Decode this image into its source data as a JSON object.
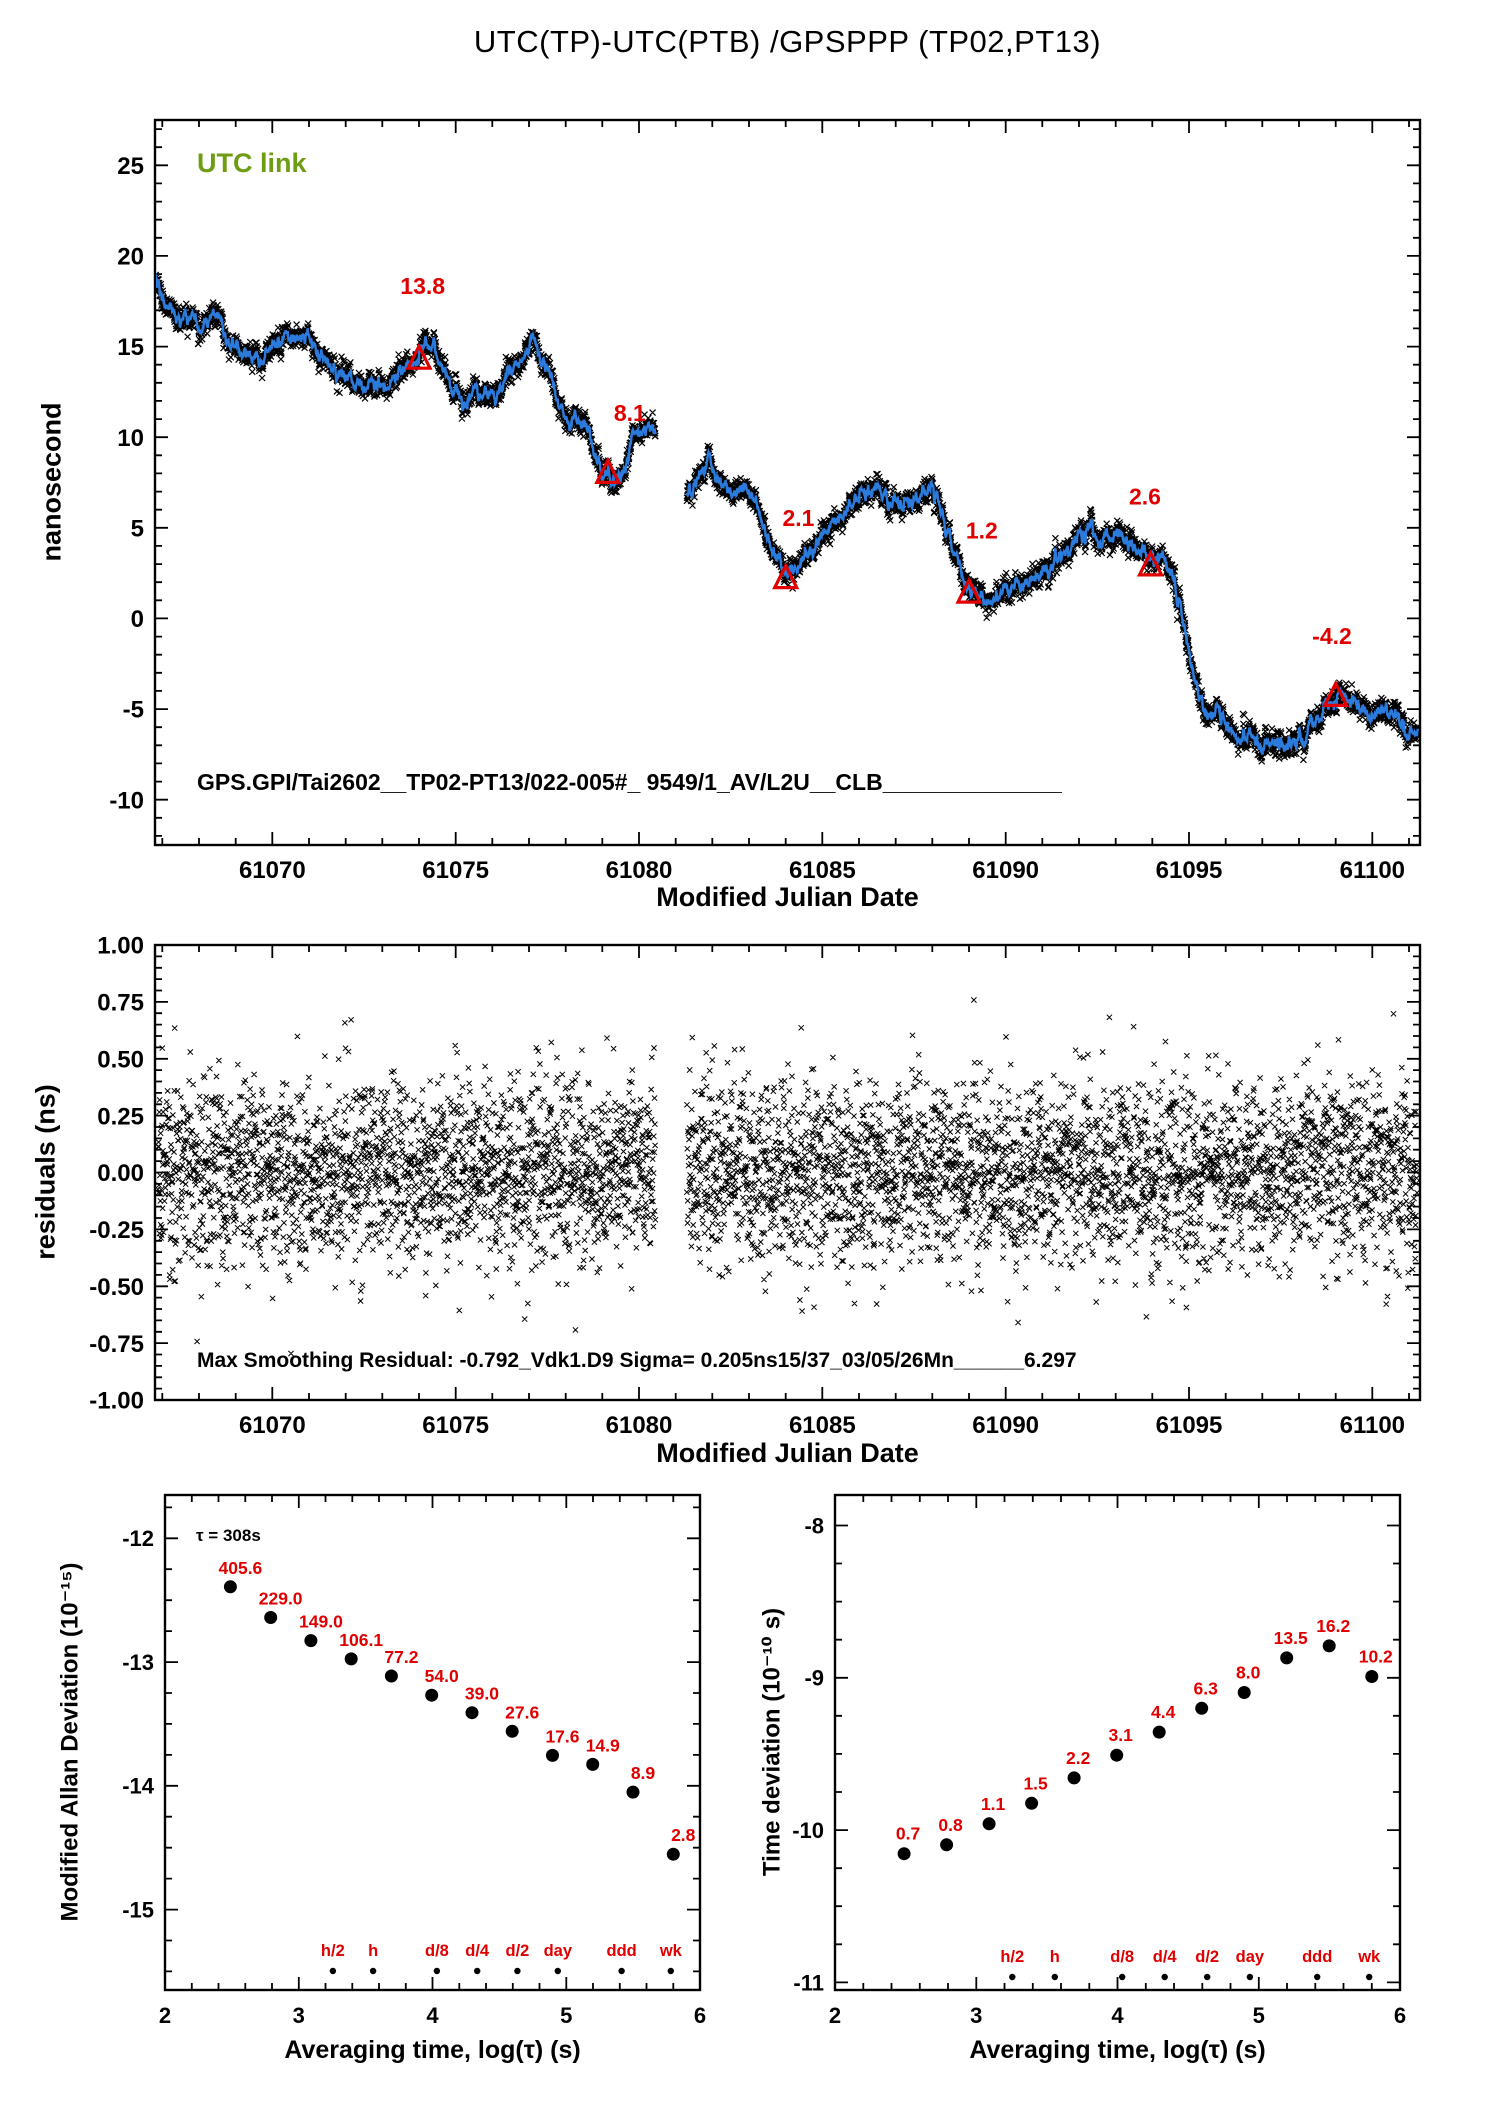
{
  "page": {
    "title": "UTC(TP)-UTC(PTB)  /GPSPPP  (TP02,PT13)"
  },
  "chart_data": [
    {
      "type": "line",
      "name": "utc-time-link",
      "series_label": "UTC link",
      "series_label_color": "#6e9c13",
      "ylabel": "nanosecond",
      "xlabel": "Modified Julian Date",
      "annotation": "GPS.GPI/Tai2602__TP02-PT13/022-005#_  9549/1_AV/L2U__CLB______________",
      "xlim": [
        61066.8,
        61101.3
      ],
      "ylim": [
        -12.5,
        27.5
      ],
      "x_major_ticks": [
        61070,
        61075,
        61080,
        61085,
        61090,
        61095,
        61100
      ],
      "y_major_ticks": [
        -10,
        -5,
        0,
        5,
        10,
        15,
        20,
        25
      ],
      "x_minor_step": 1,
      "y_minor_step": 1,
      "data_gap_mjd": [
        61080.45,
        61081.3
      ],
      "line_color": "#2b7bdc",
      "marker_color": "#000000",
      "accent_color": "#e00000",
      "trend_anchors": [
        [
          61066.8,
          18.8
        ],
        [
          61067.2,
          17.2
        ],
        [
          61067.5,
          16.3
        ],
        [
          61067.8,
          16.9
        ],
        [
          61068.1,
          16.1
        ],
        [
          61068.4,
          17.0
        ],
        [
          61068.8,
          15.3
        ],
        [
          61069.2,
          14.6
        ],
        [
          61069.6,
          14.4
        ],
        [
          61070.0,
          14.8
        ],
        [
          61070.4,
          15.3
        ],
        [
          61070.8,
          15.9
        ],
        [
          61071.1,
          15.2
        ],
        [
          61071.4,
          14.2
        ],
        [
          61071.8,
          13.3
        ],
        [
          61072.1,
          13.4
        ],
        [
          61072.4,
          12.9
        ],
        [
          61072.8,
          12.9
        ],
        [
          61073.2,
          13.1
        ],
        [
          61073.6,
          13.9
        ],
        [
          61073.9,
          14.3
        ],
        [
          61074.1,
          14.9
        ],
        [
          61074.35,
          15.3
        ],
        [
          61074.6,
          13.8
        ],
        [
          61074.9,
          12.5
        ],
        [
          61075.2,
          12.0
        ],
        [
          61075.5,
          12.6
        ],
        [
          61075.8,
          12.4
        ],
        [
          61076.1,
          12.6
        ],
        [
          61076.5,
          13.3
        ],
        [
          61076.9,
          14.6
        ],
        [
          61077.1,
          15.8
        ],
        [
          61077.35,
          14.2
        ],
        [
          61077.7,
          12.6
        ],
        [
          61078.0,
          11.2
        ],
        [
          61078.3,
          10.7
        ],
        [
          61078.7,
          9.8
        ],
        [
          61079.0,
          8.2
        ],
        [
          61079.25,
          7.1
        ],
        [
          61079.5,
          7.8
        ],
        [
          61079.8,
          9.4
        ],
        [
          61080.1,
          10.6
        ],
        [
          61080.45,
          9.9
        ],
        [
          61081.3,
          6.9
        ],
        [
          61081.6,
          7.6
        ],
        [
          61081.9,
          8.7
        ],
        [
          61082.15,
          7.3
        ],
        [
          61082.5,
          6.9
        ],
        [
          61082.8,
          7.3
        ],
        [
          61083.1,
          6.8
        ],
        [
          61083.4,
          4.9
        ],
        [
          61083.75,
          3.3
        ],
        [
          61084.05,
          2.2
        ],
        [
          61084.35,
          2.7
        ],
        [
          61084.7,
          3.6
        ],
        [
          61085.0,
          4.4
        ],
        [
          61085.4,
          5.4
        ],
        [
          61085.8,
          6.3
        ],
        [
          61086.1,
          6.9
        ],
        [
          61086.5,
          7.0
        ],
        [
          61086.9,
          6.4
        ],
        [
          61087.3,
          6.3
        ],
        [
          61087.7,
          6.6
        ],
        [
          61088.0,
          7.1
        ],
        [
          61088.3,
          5.6
        ],
        [
          61088.65,
          3.1
        ],
        [
          61089.0,
          1.6
        ],
        [
          61089.3,
          1.1
        ],
        [
          61089.6,
          0.7
        ],
        [
          61089.9,
          1.4
        ],
        [
          61090.3,
          1.9
        ],
        [
          61090.7,
          2.1
        ],
        [
          61091.1,
          2.4
        ],
        [
          61091.5,
          3.4
        ],
        [
          61091.9,
          4.4
        ],
        [
          61092.3,
          4.6
        ],
        [
          61092.7,
          4.3
        ],
        [
          61093.1,
          4.6
        ],
        [
          61093.5,
          4.2
        ],
        [
          61093.8,
          3.4
        ],
        [
          61094.05,
          3.0
        ],
        [
          61094.3,
          3.6
        ],
        [
          61094.55,
          2.6
        ],
        [
          61094.75,
          0.8
        ],
        [
          61095.0,
          -1.8
        ],
        [
          61095.25,
          -4.3
        ],
        [
          61095.5,
          -5.4
        ],
        [
          61095.8,
          -5.1
        ],
        [
          61096.1,
          -5.9
        ],
        [
          61096.4,
          -6.4
        ],
        [
          61096.7,
          -6.2
        ],
        [
          61097.0,
          -7.4
        ],
        [
          61097.3,
          -6.6
        ],
        [
          61097.6,
          -7.1
        ],
        [
          61097.9,
          -6.7
        ],
        [
          61098.2,
          -6.2
        ],
        [
          61098.6,
          -5.4
        ],
        [
          61099.0,
          -4.4
        ],
        [
          61099.3,
          -4.1
        ],
        [
          61099.6,
          -5.0
        ],
        [
          61099.9,
          -5.5
        ],
        [
          61100.2,
          -4.9
        ],
        [
          61100.5,
          -5.3
        ],
        [
          61100.8,
          -5.9
        ],
        [
          61101.1,
          -6.3
        ],
        [
          61101.25,
          -6.1
        ]
      ],
      "calibration_triangles": [
        {
          "x": 61074.0,
          "y": 14.3,
          "label": "13.8",
          "label_dx": 0.1,
          "label_dy": 3.6
        },
        {
          "x": 61079.15,
          "y": 8.0,
          "label": "8.1",
          "label_dx": 0.6,
          "label_dy": 2.9
        },
        {
          "x": 61084.0,
          "y": 2.2,
          "label": "2.1",
          "label_dx": 0.35,
          "label_dy": 2.9
        },
        {
          "x": 61089.0,
          "y": 1.4,
          "label": "1.2",
          "label_dx": 0.35,
          "label_dy": 3.0
        },
        {
          "x": 61093.95,
          "y": 2.9,
          "label": "2.6",
          "label_dx": -0.15,
          "label_dy": 3.4
        },
        {
          "x": 61099.0,
          "y": -4.3,
          "label": "-4.2",
          "label_dx": -0.1,
          "label_dy": 2.9
        }
      ]
    },
    {
      "type": "scatter",
      "name": "smoothing-residuals",
      "ylabel": "residuals (ns)",
      "xlabel": "Modified Julian Date",
      "annotation": "Max Smoothing Residual: -0.792_Vdk1.D9  Sigma= 0.205ns15/37_03/05/26Mn______6.297",
      "xlim": [
        61066.8,
        61101.3
      ],
      "ylim": [
        -1,
        1
      ],
      "x_major_ticks": [
        61070,
        61075,
        61080,
        61085,
        61090,
        61095,
        61100
      ],
      "y_major_ticks": [
        -1,
        -0.75,
        -0.5,
        -0.25,
        0,
        0.25,
        0.5,
        0.75,
        1
      ],
      "x_minor_step": 1,
      "y_minor_step": 0.05,
      "sigma_ns": 0.205,
      "data_gap_mjd": [
        61080.45,
        61081.3
      ],
      "marker_color": "#000000"
    },
    {
      "type": "scatter",
      "name": "modified-allan-deviation",
      "ylabel": "Modified Allan Deviation (10⁻¹⁵)",
      "xlabel": "Averaging time, log(τ) (s)",
      "tau_note": "τ = 308s",
      "xlim": [
        2,
        6
      ],
      "ylim": [
        -15.65,
        -11.65
      ],
      "x_major_ticks": [
        2,
        3,
        4,
        5,
        6
      ],
      "y_major_ticks": [
        -15,
        -14,
        -13,
        -12
      ],
      "x_minor_step": 0.2,
      "y_minor_step": 0.25,
      "log_tau": [
        2.489,
        2.79,
        3.091,
        3.392,
        3.693,
        3.994,
        4.295,
        4.596,
        4.897,
        5.198,
        5.499,
        5.8
      ],
      "mdev_1e15": [
        405.6,
        229.0,
        149.0,
        106.1,
        77.2,
        54.0,
        39.0,
        27.6,
        17.6,
        14.9,
        8.9,
        2.8
      ],
      "tau_markers": [
        {
          "label": "h/2",
          "log_tau": 3.255
        },
        {
          "label": "h",
          "log_tau": 3.556
        },
        {
          "label": "d/8",
          "log_tau": 4.033
        },
        {
          "label": "d/4",
          "log_tau": 4.334
        },
        {
          "label": "d/2",
          "log_tau": 4.635
        },
        {
          "label": "day",
          "log_tau": 4.937
        },
        {
          "label": "ddd",
          "log_tau": 5.414
        },
        {
          "label": "wk",
          "log_tau": 5.782
        }
      ],
      "label_color": "#e00000"
    },
    {
      "type": "scatter",
      "name": "time-deviation",
      "ylabel": "Time deviation (10⁻¹⁰ s)",
      "xlabel": "Averaging time, log(τ) (s)",
      "xlim": [
        2,
        6
      ],
      "ylim": [
        -11.05,
        -7.8
      ],
      "x_major_ticks": [
        2,
        3,
        4,
        5,
        6
      ],
      "y_major_ticks": [
        -11,
        -10,
        -9,
        -8
      ],
      "x_minor_step": 0.2,
      "y_minor_step": 0.25,
      "log_tau": [
        2.489,
        2.79,
        3.091,
        3.392,
        3.693,
        3.994,
        4.295,
        4.596,
        4.897,
        5.198,
        5.499,
        5.8
      ],
      "tdev_1e10": [
        0.7,
        0.8,
        1.1,
        1.5,
        2.2,
        3.1,
        4.4,
        6.3,
        8.0,
        13.5,
        16.2,
        10.2
      ],
      "tau_markers": [
        {
          "label": "h/2",
          "log_tau": 3.255
        },
        {
          "label": "h",
          "log_tau": 3.556
        },
        {
          "label": "d/8",
          "log_tau": 4.033
        },
        {
          "label": "d/4",
          "log_tau": 4.334
        },
        {
          "label": "d/2",
          "log_tau": 4.635
        },
        {
          "label": "day",
          "log_tau": 4.937
        },
        {
          "label": "ddd",
          "log_tau": 5.414
        },
        {
          "label": "wk",
          "log_tau": 5.782
        }
      ],
      "label_color": "#e00000"
    }
  ]
}
